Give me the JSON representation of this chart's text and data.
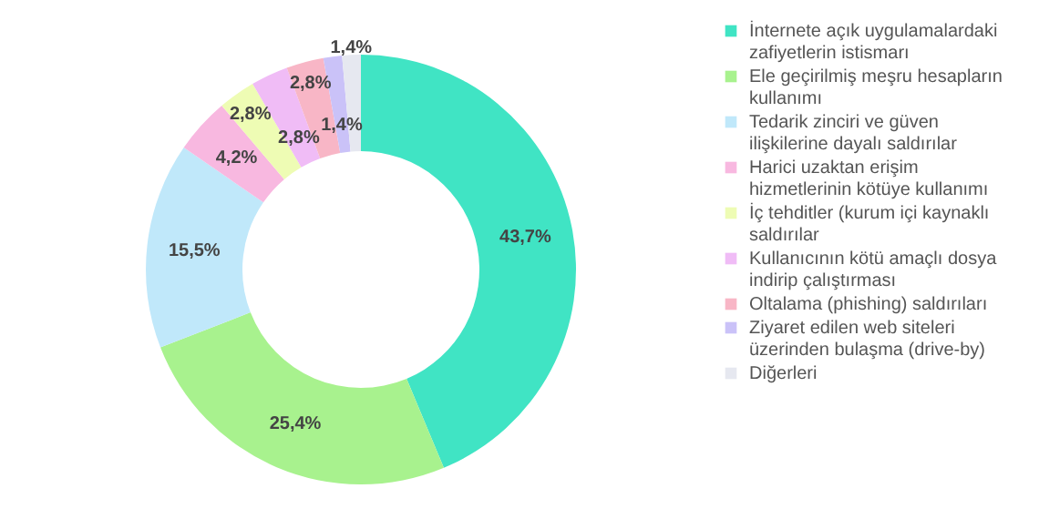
{
  "chart_data": {
    "type": "donut",
    "categories": [
      "İnternete açık uygulamalardaki zafiyetlerin istismarı",
      "Ele geçirilmiş meşru hesapların kullanımı",
      "Tedarik zinciri ve güven ilişkilerine dayalı saldırılar",
      "Harici uzaktan erişim hizmetlerinin kötüye kullanımı",
      "İç tehditler (kurum içi kaynaklı saldırılar",
      "Kullanıcının kötü amaçlı dosya indirip çalıştırması",
      "Oltalama (phishing) saldırıları",
      "Ziyaret edilen web siteleri üzerinden bulaşma (drive-by)",
      "Diğerleri"
    ],
    "values": [
      43.7,
      25.4,
      15.5,
      4.2,
      2.8,
      2.8,
      2.8,
      1.4,
      1.4
    ],
    "value_labels": [
      "43,7%",
      "25,4%",
      "15,5%",
      "4,2%",
      "2,8%",
      "2,8%",
      "2,8%",
      "1,4%",
      "1,4%"
    ],
    "colors": [
      "#40e4c4",
      "#a8f28e",
      "#c0e8fa",
      "#f8b8e0",
      "#eefcb4",
      "#f0bcf6",
      "#f8b6c6",
      "#cac2f8",
      "#e6e8f0"
    ],
    "legend": "right"
  }
}
